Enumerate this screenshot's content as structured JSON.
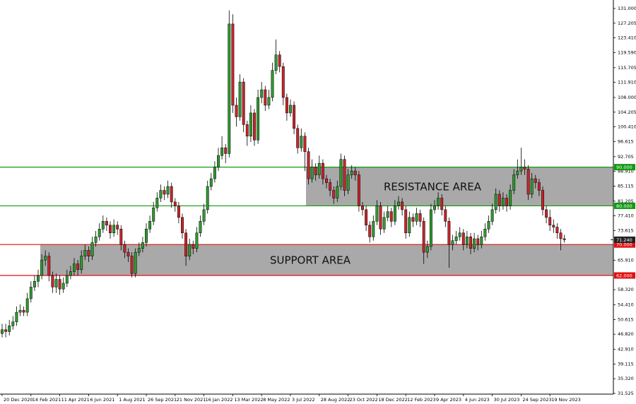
{
  "chart_data": {
    "type": "candlestick",
    "categories": [
      "20 Dec 2020",
      null,
      null,
      null,
      null,
      null,
      null,
      null,
      "14 Feb 2021",
      null,
      null,
      null,
      null,
      null,
      null,
      null,
      "11 Apr 2021",
      null,
      null,
      null,
      null,
      null,
      null,
      null,
      "6 Jun 2021",
      null,
      null,
      null,
      null,
      null,
      null,
      null,
      "1 Aug 2021",
      null,
      null,
      null,
      null,
      null,
      null,
      null,
      "26 Sep 2021",
      null,
      null,
      null,
      null,
      null,
      null,
      null,
      "21 Nov 2021",
      null,
      null,
      null,
      null,
      null,
      null,
      null,
      "16 Jan 2022",
      null,
      null,
      null,
      null,
      null,
      null,
      null,
      "13 Mar 2022",
      null,
      null,
      null,
      null,
      null,
      null,
      null,
      "8 May 2022",
      null,
      null,
      null,
      null,
      null,
      null,
      null,
      "3 Jul 2022",
      null,
      null,
      null,
      null,
      null,
      null,
      null,
      "28 Aug 2022",
      null,
      null,
      null,
      null,
      null,
      null,
      null,
      "23 Oct 2022",
      null,
      null,
      null,
      null,
      null,
      null,
      null,
      "18 Dec 2022",
      null,
      null,
      null,
      null,
      null,
      null,
      null,
      "12 Feb 2023",
      null,
      null,
      null,
      null,
      null,
      null,
      null,
      "9 Apr 2023",
      null,
      null,
      null,
      null,
      null,
      null,
      null,
      "4 Jun 2023",
      null,
      null,
      null,
      null,
      null,
      null,
      null,
      "30 Jul 2023",
      null,
      null,
      null,
      null,
      null,
      null,
      null,
      "24 Sep 2023",
      null,
      null,
      null,
      null,
      null,
      null,
      null,
      "19 Nov 2023",
      null,
      null,
      null,
      null
    ],
    "candles": [
      [
        47,
        49.5,
        46,
        48
      ],
      [
        48,
        49.5,
        46,
        47.5
      ],
      [
        47.5,
        50.5,
        46.5,
        49
      ],
      [
        49,
        51.5,
        48,
        50
      ],
      [
        50,
        54,
        49,
        52.5
      ],
      [
        52.5,
        54.5,
        51.5,
        53
      ],
      [
        53,
        54,
        51.5,
        52.5
      ],
      [
        52.5,
        57.5,
        51.5,
        56
      ],
      [
        56,
        60.5,
        55,
        59
      ],
      [
        59,
        62,
        58,
        60.5
      ],
      [
        60.5,
        63.5,
        59,
        62
      ],
      [
        62,
        67.5,
        61,
        66
      ],
      [
        66,
        68.5,
        64.5,
        67
      ],
      [
        67,
        68,
        60.5,
        62
      ],
      [
        62,
        63,
        57.5,
        59
      ],
      [
        59,
        62.5,
        57.5,
        61
      ],
      [
        61,
        62,
        57,
        58.5
      ],
      [
        58.5,
        61.5,
        57.5,
        60
      ],
      [
        60,
        63.5,
        59,
        62
      ],
      [
        62,
        64.5,
        61,
        63
      ],
      [
        63,
        66.5,
        62,
        65
      ],
      [
        65,
        66,
        62,
        63.5
      ],
      [
        63.5,
        68.5,
        62.5,
        67
      ],
      [
        67,
        70,
        66,
        68.5
      ],
      [
        68.5,
        69.5,
        65.5,
        67
      ],
      [
        67,
        72,
        66,
        70.5
      ],
      [
        70.5,
        73.5,
        69.5,
        72
      ],
      [
        72,
        75.5,
        71,
        74
      ],
      [
        74,
        77.5,
        73,
        76
      ],
      [
        76,
        77,
        73.5,
        75
      ],
      [
        75,
        76,
        71.5,
        73
      ],
      [
        73,
        76.5,
        72,
        75
      ],
      [
        75,
        76,
        72.5,
        74
      ],
      [
        74,
        75,
        68.5,
        70
      ],
      [
        70,
        71,
        66.5,
        68
      ],
      [
        68,
        69,
        65.5,
        67
      ],
      [
        67,
        68,
        61.5,
        62.5
      ],
      [
        62.5,
        69,
        61.5,
        68
      ],
      [
        68,
        70.5,
        67,
        69
      ],
      [
        69,
        72,
        68,
        70.5
      ],
      [
        70.5,
        75.5,
        69.5,
        74
      ],
      [
        74,
        77.5,
        73,
        76
      ],
      [
        76,
        81,
        75,
        79.5
      ],
      [
        79.5,
        83.5,
        78.5,
        82
      ],
      [
        82,
        85.5,
        81,
        84
      ],
      [
        84,
        85,
        81.5,
        83
      ],
      [
        83,
        86.5,
        82,
        85
      ],
      [
        85,
        86,
        79.5,
        81
      ],
      [
        81,
        82,
        78.5,
        80
      ],
      [
        80,
        81,
        75.5,
        77
      ],
      [
        77,
        78,
        71.5,
        73
      ],
      [
        73,
        74,
        64.5,
        67
      ],
      [
        67,
        71.5,
        66,
        70
      ],
      [
        70,
        71,
        67.5,
        69
      ],
      [
        69,
        74.5,
        68,
        73
      ],
      [
        73,
        77.5,
        72,
        76
      ],
      [
        76,
        80.5,
        75,
        79
      ],
      [
        79,
        86.5,
        78,
        85
      ],
      [
        85,
        88.5,
        84,
        87
      ],
      [
        87,
        91.5,
        86,
        90
      ],
      [
        90,
        95,
        89,
        93
      ],
      [
        93,
        98,
        92,
        95
      ],
      [
        95,
        96,
        91,
        93.5
      ],
      [
        93.5,
        130.5,
        92.5,
        127
      ],
      [
        127,
        129.5,
        104,
        106
      ],
      [
        106,
        108,
        100.5,
        103
      ],
      [
        103,
        114,
        102,
        112
      ],
      [
        112,
        113,
        99,
        101
      ],
      [
        101,
        102,
        95.5,
        98
      ],
      [
        98,
        106,
        96.5,
        104
      ],
      [
        104,
        105,
        95.5,
        97
      ],
      [
        97,
        110,
        96,
        108
      ],
      [
        108,
        112,
        106.5,
        110
      ],
      [
        110,
        111,
        104.5,
        106
      ],
      [
        106,
        110,
        105,
        108
      ],
      [
        108,
        117,
        107,
        115
      ],
      [
        115,
        123,
        114,
        119
      ],
      [
        119,
        120,
        114.5,
        116
      ],
      [
        116,
        117,
        106,
        108
      ],
      [
        108,
        109,
        102,
        104
      ],
      [
        104,
        107.5,
        103,
        106
      ],
      [
        106,
        107,
        98.5,
        100
      ],
      [
        100,
        101,
        93.5,
        95
      ],
      [
        95,
        100,
        94,
        98
      ],
      [
        98,
        99,
        89,
        94
      ],
      [
        94,
        95,
        85.5,
        87
      ],
      [
        87,
        92,
        86,
        90
      ],
      [
        90,
        91,
        86.5,
        88
      ],
      [
        88,
        93,
        87,
        91
      ],
      [
        91,
        92,
        85.5,
        87
      ],
      [
        87,
        88,
        84.5,
        86
      ],
      [
        86,
        87,
        82.5,
        84
      ],
      [
        84,
        85,
        80.5,
        82
      ],
      [
        82,
        86.5,
        81,
        85
      ],
      [
        85,
        93.5,
        84,
        92
      ],
      [
        92,
        93,
        82.5,
        84
      ],
      [
        84,
        89.5,
        83,
        88
      ],
      [
        88,
        90.5,
        87,
        89
      ],
      [
        89,
        90,
        86.5,
        88
      ],
      [
        88,
        89,
        78.5,
        80
      ],
      [
        80,
        81,
        77.5,
        79
      ],
      [
        79,
        80,
        73.5,
        75
      ],
      [
        75,
        76,
        70.5,
        72
      ],
      [
        72,
        77.5,
        71,
        76
      ],
      [
        76,
        81.5,
        75,
        80
      ],
      [
        80,
        81,
        72.5,
        74
      ],
      [
        74,
        78.5,
        73,
        77
      ],
      [
        77,
        80,
        76,
        78.5
      ],
      [
        78.5,
        79.5,
        74.5,
        76
      ],
      [
        76,
        81.5,
        75,
        80
      ],
      [
        80,
        82.5,
        79,
        81
      ],
      [
        81,
        82,
        77.5,
        79
      ],
      [
        79,
        80,
        71.5,
        73
      ],
      [
        73,
        78.5,
        72,
        77
      ],
      [
        77,
        78,
        74.5,
        76
      ],
      [
        76,
        79.5,
        75,
        78
      ],
      [
        78,
        79,
        74.5,
        76
      ],
      [
        76,
        77,
        65,
        68
      ],
      [
        68,
        71,
        66.5,
        69.5
      ],
      [
        69.5,
        80.5,
        68.5,
        79
      ],
      [
        79,
        81.5,
        78,
        80
      ],
      [
        80,
        83.5,
        79,
        82
      ],
      [
        82,
        83,
        77.5,
        79
      ],
      [
        79,
        80,
        74.5,
        76
      ],
      [
        76,
        77,
        64,
        70
      ],
      [
        70,
        72.5,
        68.5,
        71
      ],
      [
        71,
        73.5,
        70,
        72
      ],
      [
        72,
        74.5,
        71,
        73
      ],
      [
        73,
        74,
        68.5,
        70
      ],
      [
        70,
        73.5,
        69,
        72
      ],
      [
        72,
        73,
        67.5,
        69
      ],
      [
        69,
        73,
        68,
        71.5
      ],
      [
        71.5,
        72.5,
        68.5,
        70
      ],
      [
        70,
        73.5,
        69,
        72
      ],
      [
        72,
        75.5,
        71,
        74
      ],
      [
        74,
        77.5,
        73,
        76
      ],
      [
        76,
        80.5,
        75,
        79
      ],
      [
        79,
        84.5,
        78,
        83
      ],
      [
        83,
        84,
        78.5,
        80
      ],
      [
        80,
        83.5,
        79,
        82
      ],
      [
        82,
        83,
        78.5,
        80
      ],
      [
        80,
        85.5,
        79,
        84
      ],
      [
        84,
        89.5,
        83,
        88
      ],
      [
        88,
        92,
        87,
        89
      ],
      [
        89,
        95,
        88,
        90
      ],
      [
        90,
        92,
        88,
        89.5
      ],
      [
        89.5,
        90.5,
        81.5,
        83
      ],
      [
        83,
        88.5,
        82,
        87
      ],
      [
        87,
        88,
        84.5,
        86
      ],
      [
        86,
        87,
        82.5,
        84
      ],
      [
        84,
        85,
        77.5,
        79
      ],
      [
        79,
        80,
        75.5,
        77
      ],
      [
        77,
        79,
        73.5,
        75
      ],
      [
        75,
        76.5,
        73,
        74.5
      ],
      [
        74.5,
        75.5,
        71.5,
        73
      ],
      [
        73,
        74,
        68.5,
        71.5
      ],
      [
        71.5,
        72.5,
        70.5,
        71.24
      ]
    ],
    "up_color": "#2f9a2f",
    "down_color": "#c8242a",
    "ylim": [
      31.525,
      131
    ],
    "yticks": [
      {
        "value": 131,
        "label": "131.000"
      },
      {
        "value": 127.205,
        "label": "127.205"
      },
      {
        "value": 123.41,
        "label": "123.410"
      },
      {
        "value": 119.59,
        "label": "119.590"
      },
      {
        "value": 115.705,
        "label": "115.705"
      },
      {
        "value": 111.91,
        "label": "111.910"
      },
      {
        "value": 108,
        "label": "108.000"
      },
      {
        "value": 104.205,
        "label": "104.205"
      },
      {
        "value": 100.41,
        "label": "100.410"
      },
      {
        "value": 96.615,
        "label": "96.615"
      },
      {
        "value": 92.705,
        "label": "92.705"
      },
      {
        "value": 88.91,
        "label": "88.910"
      },
      {
        "value": 85.115,
        "label": "85.115"
      },
      {
        "value": 81.205,
        "label": "81.205"
      },
      {
        "value": 77.41,
        "label": "77.410"
      },
      {
        "value": 73.615,
        "label": "73.615"
      },
      {
        "value": 65.91,
        "label": "65.910"
      },
      {
        "value": 58.32,
        "label": "58.320"
      },
      {
        "value": 54.41,
        "label": "54.410"
      },
      {
        "value": 50.615,
        "label": "50.615"
      },
      {
        "value": 46.82,
        "label": "46.820"
      },
      {
        "value": 42.91,
        "label": "42.910"
      },
      {
        "value": 39.115,
        "label": "39.115"
      },
      {
        "value": 35.32,
        "label": "35.320"
      },
      {
        "value": 31.525,
        "label": "31.525"
      }
    ],
    "zones": [
      {
        "label": "RESISTANCE AREA",
        "low": 80,
        "high": 90
      },
      {
        "label": "SUPPORT AREA",
        "low": 62,
        "high": 70
      }
    ],
    "levels": [
      {
        "value": 90,
        "label": "90.000",
        "color": "#119911"
      },
      {
        "value": 80,
        "label": "80.000",
        "color": "#119911"
      },
      {
        "value": 70,
        "label": "70.000",
        "color": "#e01010"
      },
      {
        "value": 62,
        "label": "62.000",
        "color": "#e01010"
      }
    ],
    "last_price": {
      "value": 71.24,
      "label": "71.240"
    }
  }
}
